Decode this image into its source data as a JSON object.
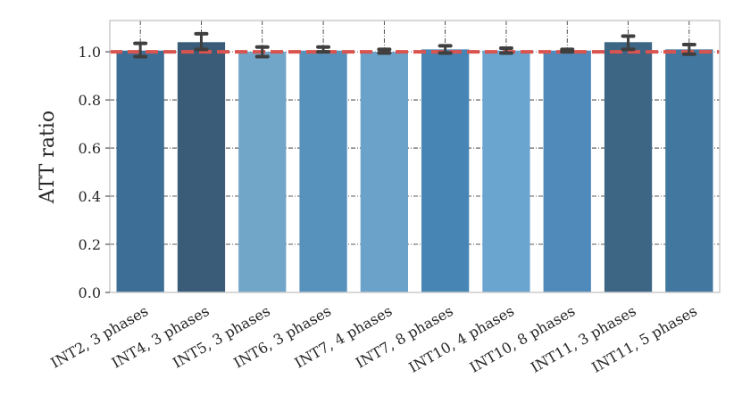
{
  "chart_data": {
    "type": "bar",
    "title": "",
    "xlabel": "",
    "ylabel": "ATT ratio",
    "ylim": [
      0,
      1.13
    ],
    "yticks": [
      "0.0",
      "0.2",
      "0.4",
      "0.6",
      "0.8",
      "1.0"
    ],
    "ytick_values": [
      0.0,
      0.2,
      0.4,
      0.6,
      0.8,
      1.0
    ],
    "grid": true,
    "reference_line": {
      "y": 1.0,
      "color": "#d9534f",
      "style": "dashed"
    },
    "categories": [
      "INT2, 3 phases",
      "INT4, 3 phases",
      "INT5, 3 phases",
      "INT6, 3 phases",
      "INT7, 4 phases",
      "INT7, 8 phases",
      "INT10, 4 phases",
      "INT10, 8 phases",
      "INT11, 3 phases",
      "INT11, 5 phases"
    ],
    "values": [
      1.005,
      1.04,
      1.0,
      1.005,
      1.0,
      1.01,
      1.005,
      1.005,
      1.04,
      1.01
    ],
    "error_low": [
      0.98,
      1.01,
      0.98,
      1.0,
      0.995,
      0.995,
      0.995,
      1.0,
      1.01,
      0.99
    ],
    "error_high": [
      1.035,
      1.075,
      1.02,
      1.02,
      1.01,
      1.025,
      1.015,
      1.01,
      1.065,
      1.03
    ],
    "bar_colors": [
      "#3d6e96",
      "#3b5c79",
      "#72a6c8",
      "#5792bd",
      "#6ba2c9",
      "#4785b5",
      "#6aa5d0",
      "#4f8aba",
      "#3d6584",
      "#42779f"
    ],
    "error_color": "#3f3f3f"
  }
}
